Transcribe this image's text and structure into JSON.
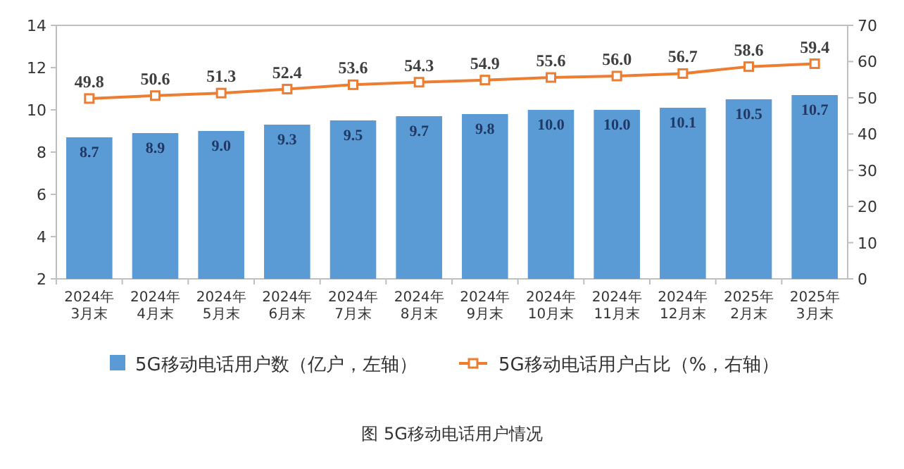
{
  "chart_data": {
    "type": "bar",
    "categories": [
      "2024年3月末",
      "2024年4月末",
      "2024年5月末",
      "2024年6月末",
      "2024年7月末",
      "2024年8月末",
      "2024年9月末",
      "2024年10月末",
      "2024年11月末",
      "2024年12月末",
      "2025年2月末",
      "2025年3月末"
    ],
    "series": [
      {
        "name": "5G移动电话用户数（亿户，左轴）",
        "color": "#5b9bd5",
        "values": [
          8.7,
          8.9,
          9.0,
          9.3,
          9.5,
          9.7,
          9.8,
          10.0,
          10.0,
          10.1,
          10.5,
          10.7
        ],
        "value_labels": [
          "8.7",
          "8.9",
          "9.0",
          "9.3",
          "9.5",
          "9.7",
          "9.8",
          "10.0",
          "10.0",
          "10.1",
          "10.5",
          "10.7"
        ]
      },
      {
        "name": "5G移动电话用户占比（%，右轴）",
        "type": "line",
        "axis": "y2",
        "color": "#ed7d31",
        "marker": "square",
        "values": [
          49.8,
          50.6,
          51.3,
          52.4,
          53.6,
          54.3,
          54.9,
          55.6,
          56.0,
          56.7,
          58.6,
          59.4
        ],
        "value_labels": [
          "49.8",
          "50.6",
          "51.3",
          "52.4",
          "53.6",
          "54.3",
          "54.9",
          "55.6",
          "56.0",
          "56.7",
          "58.6",
          "59.4"
        ]
      }
    ],
    "ylim": [
      2,
      14
    ],
    "yticks": [
      2,
      4,
      6,
      8,
      10,
      12,
      14
    ],
    "y2lim": [
      0,
      70
    ],
    "y2ticks": [
      0,
      10,
      20,
      30,
      40,
      50,
      60,
      70
    ],
    "data_labels": true,
    "legend": "bottom",
    "annotations": [
      "图  5G移动电话用户情况"
    ]
  }
}
